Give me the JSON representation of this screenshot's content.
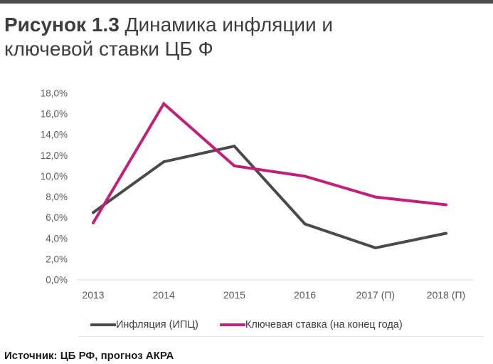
{
  "page": {
    "title_line1_bold": "Рисунок 1.3",
    "title_line1_rest": " Динамика инфляции и",
    "title_line2": "ключевой ставки ЦБ Ф",
    "source": "Источник: ЦБ РФ, прогноз АКРА"
  },
  "colors": {
    "accent_bar": "#4d4d4d",
    "title_text": "#3d3d3d",
    "axis_text": "#595959",
    "axis_line": "#d9d9d9",
    "divider": "#e6e6e6",
    "inflation_line": "#4a4a4a",
    "key_rate_line": "#c02078"
  },
  "chart_data": {
    "type": "line",
    "title": "Динамика инфляции и ключевой ставки ЦБ Ф",
    "categories": [
      "2013",
      "2014",
      "2015",
      "2016",
      "2017 (П)",
      "2018 (П)"
    ],
    "series": [
      {
        "name": "Инфляция (ИПЦ)",
        "color": "#4a4a4a",
        "values": [
          6.5,
          11.4,
          12.9,
          5.4,
          3.1,
          4.5
        ]
      },
      {
        "name": "Ключевая ставка (на конец года)",
        "color": "#c02078",
        "values": [
          5.5,
          17.0,
          11.0,
          10.0,
          8.0,
          7.25
        ]
      }
    ],
    "ylim": [
      0,
      18
    ],
    "ytick_step": 2,
    "ytick_labels": [
      "0,0%",
      "2,0%",
      "4,0%",
      "6,0%",
      "8,0%",
      "10,0%",
      "12,0%",
      "14,0%",
      "16,0%",
      "18,0%"
    ],
    "grid": false,
    "legend_position": "bottom",
    "xlabel": "",
    "ylabel": ""
  }
}
